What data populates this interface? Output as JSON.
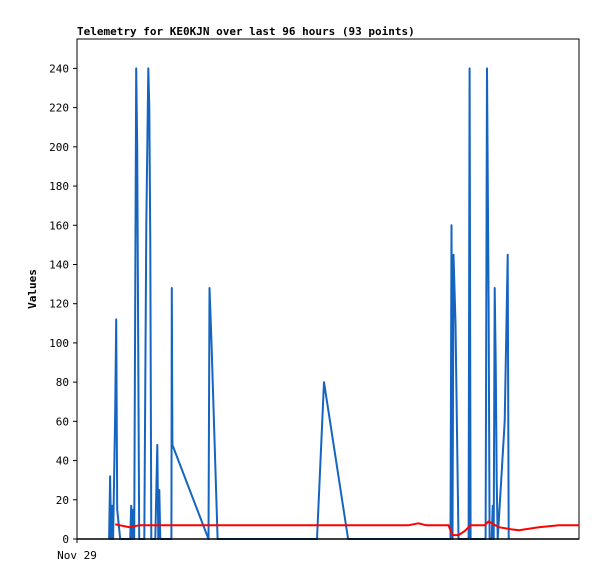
{
  "chart_data": {
    "type": "line",
    "title": "Telemetry for KE0KJN over last 96 hours (93 points)",
    "ylabel": "Values",
    "xlabel": "",
    "ylim": [
      0,
      255
    ],
    "xlim": [
      0,
      25
    ],
    "yticks": [
      0,
      20,
      40,
      60,
      80,
      100,
      120,
      140,
      160,
      180,
      200,
      220,
      240
    ],
    "xtick_labels": [
      {
        "x": 0,
        "label": "Nov 29"
      }
    ],
    "grid": false,
    "legend": "none",
    "series": [
      {
        "color": "#1565c0",
        "points": [
          [
            1.6,
            0
          ],
          [
            1.65,
            32
          ],
          [
            1.7,
            0
          ],
          [
            1.75,
            17
          ],
          [
            1.8,
            0
          ],
          [
            1.9,
            65
          ],
          [
            1.95,
            112
          ],
          [
            2.0,
            15
          ],
          [
            2.15,
            0
          ],
          [
            2.65,
            0
          ],
          [
            2.7,
            17
          ],
          [
            2.75,
            0
          ],
          [
            2.8,
            15
          ],
          [
            2.85,
            0
          ],
          [
            2.95,
            240
          ],
          [
            3.0,
            200
          ],
          [
            3.05,
            100
          ],
          [
            3.1,
            0
          ],
          [
            3.35,
            0
          ],
          [
            3.45,
            160
          ],
          [
            3.55,
            240
          ],
          [
            3.6,
            220
          ],
          [
            3.65,
            150
          ],
          [
            3.7,
            0
          ],
          [
            3.9,
            0
          ],
          [
            4.0,
            48
          ],
          [
            4.05,
            0
          ],
          [
            4.1,
            25
          ],
          [
            4.15,
            0
          ],
          [
            4.7,
            0
          ],
          [
            4.72,
            128
          ],
          [
            4.75,
            48
          ],
          [
            6.55,
            0
          ],
          [
            6.6,
            128
          ],
          [
            6.7,
            100
          ],
          [
            7.0,
            0
          ],
          [
            11.95,
            0
          ],
          [
            12.3,
            80
          ],
          [
            13.5,
            0
          ],
          [
            18.6,
            0
          ],
          [
            18.65,
            160
          ],
          [
            18.7,
            0
          ],
          [
            18.75,
            145
          ],
          [
            18.85,
            110
          ],
          [
            19.0,
            0
          ],
          [
            19.5,
            0
          ],
          [
            19.55,
            240
          ],
          [
            19.6,
            0
          ],
          [
            20.35,
            0
          ],
          [
            20.42,
            240
          ],
          [
            20.5,
            120
          ],
          [
            20.55,
            0
          ],
          [
            20.65,
            0
          ],
          [
            20.7,
            17
          ],
          [
            20.75,
            0
          ],
          [
            20.8,
            128
          ],
          [
            20.85,
            90
          ],
          [
            20.9,
            30
          ],
          [
            20.95,
            0
          ],
          [
            21.3,
            60
          ],
          [
            21.45,
            145
          ],
          [
            21.5,
            0
          ]
        ]
      },
      {
        "color": "#ff0000",
        "points": [
          [
            1.9,
            7.5
          ],
          [
            2.6,
            6
          ],
          [
            3.1,
            7
          ],
          [
            4.0,
            7
          ],
          [
            12.0,
            7
          ],
          [
            16.5,
            7
          ],
          [
            17.0,
            8
          ],
          [
            17.4,
            7
          ],
          [
            18.5,
            7
          ],
          [
            18.7,
            2
          ],
          [
            19.0,
            2
          ],
          [
            19.3,
            4
          ],
          [
            19.6,
            7
          ],
          [
            20.3,
            7
          ],
          [
            20.5,
            9
          ],
          [
            21.0,
            6
          ],
          [
            21.6,
            5
          ],
          [
            22.0,
            4.5
          ],
          [
            23.0,
            6
          ],
          [
            24.0,
            7
          ],
          [
            25.0,
            7
          ]
        ]
      },
      {
        "color": "#000000",
        "points": [
          [
            0,
            0
          ],
          [
            25,
            0
          ]
        ]
      }
    ]
  }
}
